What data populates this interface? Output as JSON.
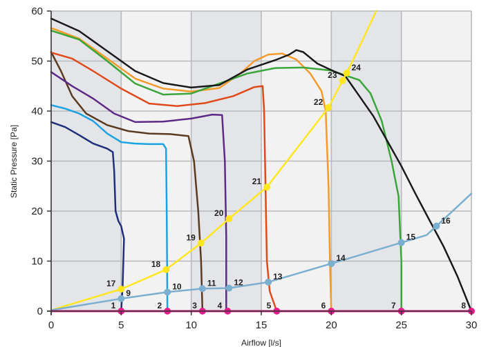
{
  "chart_data": {
    "type": "line",
    "title": "",
    "xlabel": "Airflow [l/s]",
    "ylabel": "Static Pressure [Pa]",
    "xlim": [
      0,
      30
    ],
    "ylim": [
      0,
      60
    ],
    "xticks": [
      0,
      5,
      10,
      15,
      20,
      25,
      30
    ],
    "yticks": [
      0,
      10,
      20,
      30,
      40,
      50,
      60
    ],
    "grid": true,
    "series": [
      {
        "color": "#1f2f7a",
        "points": [
          [
            0,
            37.8
          ],
          [
            1,
            36.8
          ],
          [
            2,
            35.2
          ],
          [
            3,
            33.5
          ],
          [
            4,
            32.5
          ],
          [
            4.4,
            31.8
          ],
          [
            4.5,
            28
          ],
          [
            4.6,
            20
          ],
          [
            4.8,
            18
          ],
          [
            5.0,
            17
          ],
          [
            5.2,
            14.5
          ],
          [
            5.1,
            5
          ],
          [
            5.0,
            0
          ]
        ]
      },
      {
        "color": "#1aa3e0",
        "points": [
          [
            0,
            41.2
          ],
          [
            1,
            40.5
          ],
          [
            2,
            39.5
          ],
          [
            3,
            38
          ],
          [
            4,
            35.5
          ],
          [
            5,
            33.8
          ],
          [
            6,
            33.5
          ],
          [
            7,
            33.4
          ],
          [
            8,
            33.4
          ],
          [
            8.2,
            32.5
          ],
          [
            8.25,
            20
          ],
          [
            8.3,
            0
          ]
        ]
      },
      {
        "color": "#5a3a20",
        "points": [
          [
            0,
            51.8
          ],
          [
            0.7,
            48
          ],
          [
            1.5,
            43
          ],
          [
            2.5,
            39.5
          ],
          [
            4,
            37.2
          ],
          [
            5.5,
            36
          ],
          [
            7,
            35.5
          ],
          [
            8.5,
            35.4
          ],
          [
            9.8,
            35
          ],
          [
            10.2,
            30
          ],
          [
            10.5,
            20
          ],
          [
            10.7,
            10
          ],
          [
            10.8,
            0
          ]
        ]
      },
      {
        "color": "#5c2a86",
        "points": [
          [
            0,
            47.8
          ],
          [
            1.5,
            45
          ],
          [
            3,
            42.5
          ],
          [
            4.5,
            39.5
          ],
          [
            6,
            37.8
          ],
          [
            8,
            37.9
          ],
          [
            10,
            38.5
          ],
          [
            11.5,
            39.3
          ],
          [
            12.2,
            39.2
          ],
          [
            12.4,
            30
          ],
          [
            12.5,
            15
          ],
          [
            12.5,
            0
          ]
        ]
      },
      {
        "color": "#e04a1a",
        "points": [
          [
            0,
            51.7
          ],
          [
            1.5,
            50.5
          ],
          [
            3,
            48
          ],
          [
            5,
            44.5
          ],
          [
            7,
            41.5
          ],
          [
            9,
            41
          ],
          [
            11,
            41.6
          ],
          [
            13,
            43
          ],
          [
            14.5,
            44.8
          ],
          [
            15.1,
            45
          ],
          [
            15.2,
            40
          ],
          [
            15.3,
            25
          ],
          [
            15.4,
            10
          ],
          [
            15.6,
            4
          ],
          [
            16.1,
            0
          ]
        ]
      },
      {
        "color": "#f39a2a",
        "points": [
          [
            0,
            56.6
          ],
          [
            2,
            54.5
          ],
          [
            4,
            50.5
          ],
          [
            6,
            46.5
          ],
          [
            8,
            44.5
          ],
          [
            10,
            43.9
          ],
          [
            12,
            44.6
          ],
          [
            13.5,
            47.5
          ],
          [
            14.5,
            50
          ],
          [
            15.5,
            51.3
          ],
          [
            16.5,
            51.5
          ],
          [
            17.5,
            50.3
          ],
          [
            18.5,
            47.5
          ],
          [
            19.3,
            44
          ],
          [
            19.6,
            40
          ],
          [
            19.8,
            25
          ],
          [
            19.9,
            10
          ],
          [
            20.0,
            0
          ]
        ]
      },
      {
        "color": "#3aa63a",
        "points": [
          [
            0,
            56.1
          ],
          [
            2,
            54.3
          ],
          [
            4,
            50
          ],
          [
            6,
            45.5
          ],
          [
            8,
            43.3
          ],
          [
            10,
            43.5
          ],
          [
            12,
            45.5
          ],
          [
            14,
            47.5
          ],
          [
            16,
            48.6
          ],
          [
            18,
            48.7
          ],
          [
            20,
            48.1
          ],
          [
            22,
            46.2
          ],
          [
            22.8,
            43.5
          ],
          [
            23.6,
            38
          ],
          [
            24.3,
            30
          ],
          [
            24.8,
            23
          ],
          [
            25.0,
            10
          ],
          [
            25.0,
            0
          ]
        ]
      },
      {
        "color": "#1a1a1a",
        "points": [
          [
            0,
            58.5
          ],
          [
            2,
            56
          ],
          [
            4,
            52
          ],
          [
            6,
            48
          ],
          [
            8,
            45.6
          ],
          [
            10,
            44.7
          ],
          [
            12,
            45.2
          ],
          [
            14,
            48.3
          ],
          [
            16,
            50.2
          ],
          [
            17,
            51.3
          ],
          [
            17.5,
            52.2
          ],
          [
            18,
            51.8
          ],
          [
            19,
            49.5
          ],
          [
            20,
            48.2
          ],
          [
            21,
            47
          ],
          [
            22,
            43
          ],
          [
            23,
            39
          ],
          [
            24,
            34
          ],
          [
            25,
            29
          ],
          [
            26,
            23.5
          ],
          [
            27,
            18.2
          ],
          [
            28,
            13
          ],
          [
            29,
            7
          ],
          [
            30,
            0
          ]
        ]
      }
    ],
    "duct_curves": [
      {
        "color": "#ffe61e",
        "points": [
          [
            0,
            0.2
          ],
          [
            5,
            4.4
          ],
          [
            8.2,
            8.3
          ],
          [
            10.7,
            13.6
          ],
          [
            12.7,
            18.5
          ],
          [
            15.4,
            24.8
          ],
          [
            19.8,
            40.7
          ],
          [
            20.8,
            46.1
          ],
          [
            21.1,
            47.6
          ],
          [
            22.2,
            54
          ],
          [
            23.2,
            60
          ]
        ]
      },
      {
        "color": "#7aafd0",
        "points": [
          [
            0,
            0.2
          ],
          [
            5,
            2.5
          ],
          [
            8.3,
            3.8
          ],
          [
            10.8,
            4.5
          ],
          [
            12.7,
            4.6
          ],
          [
            15.5,
            5.8
          ],
          [
            20,
            9.5
          ],
          [
            25,
            13.7
          ],
          [
            26.8,
            15.2
          ],
          [
            27.5,
            17
          ],
          [
            30,
            23.5
          ]
        ]
      }
    ],
    "intersections": [
      {
        "label": "1",
        "x": 5.0,
        "y": 0,
        "color": "#e21e8c",
        "anchor": "left"
      },
      {
        "label": "2",
        "x": 8.3,
        "y": 0,
        "color": "#e21e8c",
        "anchor": "left"
      },
      {
        "label": "3",
        "x": 10.8,
        "y": 0,
        "color": "#e21e8c",
        "anchor": "left"
      },
      {
        "label": "4",
        "x": 12.6,
        "y": 0,
        "color": "#e21e8c",
        "anchor": "left"
      },
      {
        "label": "5",
        "x": 16.1,
        "y": 0,
        "color": "#e21e8c",
        "anchor": "left"
      },
      {
        "label": "6",
        "x": 20.0,
        "y": 0,
        "color": "#e21e8c",
        "anchor": "left"
      },
      {
        "label": "7",
        "x": 25.0,
        "y": 0,
        "color": "#e21e8c",
        "anchor": "left"
      },
      {
        "label": "8",
        "x": 30.0,
        "y": 0,
        "color": "#e21e8c",
        "anchor": "left"
      },
      {
        "label": "9",
        "x": 5.0,
        "y": 2.5,
        "color": "#7aafd0",
        "anchor": "right"
      },
      {
        "label": "10",
        "x": 8.3,
        "y": 3.8,
        "color": "#7aafd0",
        "anchor": "right"
      },
      {
        "label": "11",
        "x": 10.8,
        "y": 4.5,
        "color": "#7aafd0",
        "anchor": "right"
      },
      {
        "label": "12",
        "x": 12.7,
        "y": 4.6,
        "color": "#7aafd0",
        "anchor": "right"
      },
      {
        "label": "13",
        "x": 15.5,
        "y": 5.8,
        "color": "#7aafd0",
        "anchor": "right"
      },
      {
        "label": "14",
        "x": 20.0,
        "y": 9.5,
        "color": "#7aafd0",
        "anchor": "right"
      },
      {
        "label": "15",
        "x": 25.0,
        "y": 13.7,
        "color": "#7aafd0",
        "anchor": "right"
      },
      {
        "label": "16",
        "x": 27.5,
        "y": 17.0,
        "color": "#7aafd0",
        "anchor": "right"
      },
      {
        "label": "17",
        "x": 5.0,
        "y": 4.4,
        "color": "#ffe61e",
        "anchor": "left"
      },
      {
        "label": "18",
        "x": 8.2,
        "y": 8.3,
        "color": "#ffe61e",
        "anchor": "left"
      },
      {
        "label": "19",
        "x": 10.7,
        "y": 13.6,
        "color": "#ffe61e",
        "anchor": "left"
      },
      {
        "label": "20",
        "x": 12.7,
        "y": 18.5,
        "color": "#ffe61e",
        "anchor": "left"
      },
      {
        "label": "21",
        "x": 15.4,
        "y": 24.8,
        "color": "#ffe61e",
        "anchor": "left"
      },
      {
        "label": "22",
        "x": 19.8,
        "y": 40.7,
        "color": "#ffe61e",
        "anchor": "left"
      },
      {
        "label": "23",
        "x": 20.8,
        "y": 46.1,
        "color": "#ffe61e",
        "anchor": "left"
      },
      {
        "label": "24",
        "x": 21.1,
        "y": 47.6,
        "color": "#ffe61e",
        "anchor": "right"
      }
    ],
    "zero_line_color": "#e21e8c"
  }
}
